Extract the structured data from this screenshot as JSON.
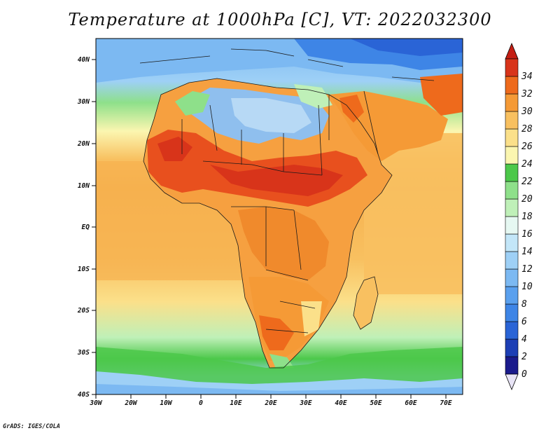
{
  "title": "Temperature at 1000hPa [C], VT: 2022032300",
  "credit": "GrADS: IGES/COLA",
  "map": {
    "lat_labels": [
      "40N",
      "30N",
      "20N",
      "10N",
      "EQ",
      "10S",
      "20S",
      "30S",
      "40S"
    ],
    "lon_labels": [
      "30W",
      "20W",
      "10W",
      "0",
      "10E",
      "20E",
      "30E",
      "40E",
      "50E",
      "60E",
      "70E"
    ],
    "lat_range": [
      -40,
      45
    ],
    "lon_range": [
      -30,
      75
    ]
  },
  "colorbar": {
    "labels": [
      "0",
      "2",
      "4",
      "6",
      "8",
      "10",
      "12",
      "14",
      "16",
      "18",
      "20",
      "22",
      "24",
      "26",
      "28",
      "30",
      "32",
      "34"
    ],
    "colors": [
      "#1b1b8c",
      "#1d3fb5",
      "#2a64d6",
      "#3e85e6",
      "#5aa0ee",
      "#7cb9f2",
      "#9ed0f6",
      "#c3e6f8",
      "#e6f8f2",
      "#bff0b8",
      "#8ee08a",
      "#4cc84a",
      "#fbf6b0",
      "#fbe08a",
      "#f8c060",
      "#f59a36",
      "#ee6a1c",
      "#d8341a"
    ],
    "below_color": "#e8e4f6",
    "above_color": "#c41e14"
  },
  "colors": {
    "ocean_north": "#7eb4ec",
    "ocean_tropical": "#f6b14f",
    "land_hot": "#e8501e",
    "sahara": "#8fbfee"
  }
}
